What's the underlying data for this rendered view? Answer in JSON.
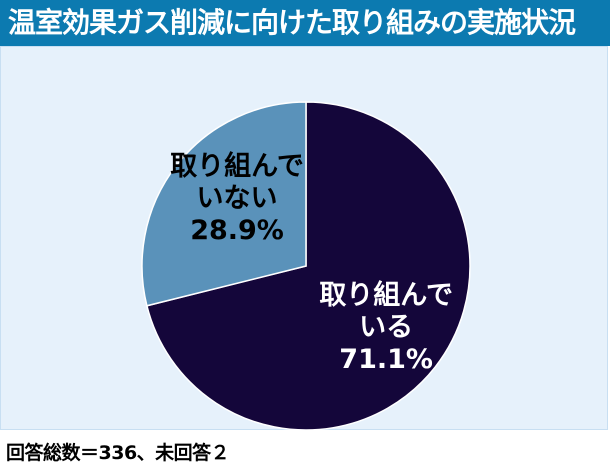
{
  "title": "温室効果ガス削減に向けた取り組みの実施状況",
  "note": "回答総数＝336、未回答２",
  "colors": {
    "title_bg": "#0c7ab0",
    "panel_bg": "#e6f1fb",
    "slice_1": "#14063a",
    "slice_2": "#5a92ba",
    "label_1": "#ffffff",
    "label_2": "#000000"
  },
  "chart_data": {
    "type": "pie",
    "title": "温室効果ガス削減に向けた取り組みの実施状況",
    "slices": [
      {
        "label_lines": [
          "取り組んで",
          "いる"
        ],
        "value": 71.1,
        "value_label": "71.1%",
        "color": "#14063a",
        "text_color": "#ffffff"
      },
      {
        "label_lines": [
          "取り組んで",
          "いない"
        ],
        "value": 28.9,
        "value_label": "28.9%",
        "color": "#5a92ba",
        "text_color": "#000000"
      }
    ],
    "start": "12 o'clock",
    "direction": "clockwise"
  }
}
